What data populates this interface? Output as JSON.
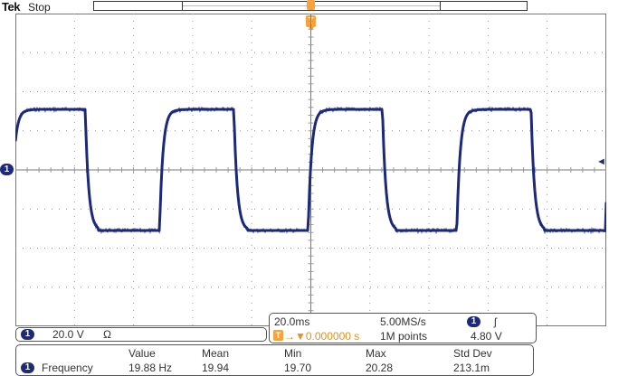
{
  "header": {
    "brand": "Tek",
    "status": "Stop"
  },
  "trigger": {
    "marker": "T",
    "position_arrow": "▼"
  },
  "channel": {
    "number": "1",
    "scale": "20.0 V",
    "coupling_icon": "Ω"
  },
  "timebase": {
    "time_per_div": "20.0ms",
    "sample_rate": "5.00MS/s",
    "trigger_delay_prefix": "T",
    "trigger_delay": "→▼0.000000 s",
    "record_length": "1M points",
    "trigger_channel": "1",
    "trigger_slope_icon": "ʃ",
    "trigger_level": "4.80 V"
  },
  "measurements": {
    "headers": [
      "Value",
      "Mean",
      "Min",
      "Max",
      "Std Dev"
    ],
    "rows": [
      {
        "channel": "1",
        "name": "Frequency",
        "value": "19.88 Hz",
        "mean": "19.94",
        "min": "19.70",
        "max": "20.28",
        "std_dev": "213.1m"
      }
    ]
  },
  "colors": {
    "trace": "#1d2a7a",
    "trigger": "#f7a33a",
    "grid": "#999999"
  },
  "waveform": {
    "type": "square",
    "frequency_hz": 19.88,
    "high_divs": 1.55,
    "low_divs": -1.55,
    "horizontal_divs": 10,
    "vertical_divs": 8
  }
}
